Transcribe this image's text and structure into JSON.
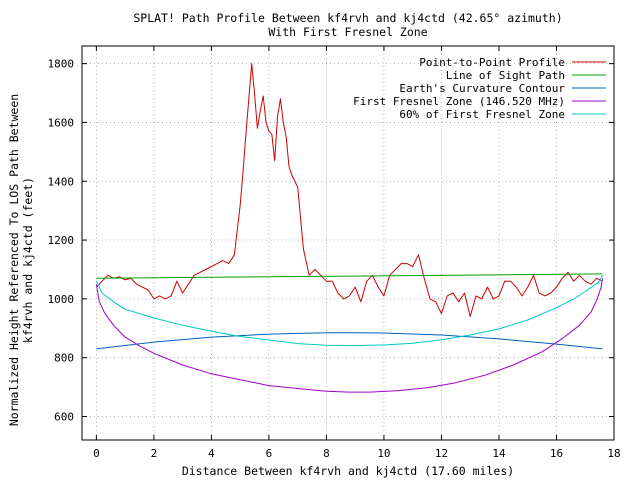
{
  "chart_data": {
    "type": "line",
    "title": "SPLAT! Path Profile Between kf4rvh and kj4ctd (42.65° azimuth)",
    "subtitle": "With First Fresnel Zone",
    "xlabel": "Distance Between kf4rvh and kj4ctd (17.60 miles)",
    "ylabel_line1": "Normalized Height Referenced To LOS Path Between",
    "ylabel_line2": "kf4rvh and kj4ctd (feet)",
    "xlim": [
      -0.5,
      18
    ],
    "ylim": [
      520,
      1860
    ],
    "x_ticks": [
      0,
      2,
      4,
      6,
      8,
      10,
      12,
      14,
      16,
      18
    ],
    "y_ticks": [
      600,
      800,
      1000,
      1200,
      1400,
      1600,
      1800
    ],
    "x_tick_labels": [
      "0",
      "2",
      "4",
      "6",
      "8",
      "10",
      "12",
      "14",
      "16",
      "18"
    ],
    "y_tick_labels": [
      "600",
      "800",
      "1000",
      "1200",
      "1400",
      "1600",
      "1800"
    ],
    "grid": true,
    "legend_position": "top-right",
    "series": [
      {
        "name": "Point-to-Point Profile",
        "color": "#cc0000",
        "x": [
          0,
          0.2,
          0.4,
          0.6,
          0.8,
          1.0,
          1.2,
          1.4,
          1.6,
          1.8,
          2.0,
          2.2,
          2.4,
          2.6,
          2.8,
          3.0,
          3.2,
          3.4,
          3.6,
          3.8,
          4.0,
          4.2,
          4.4,
          4.6,
          4.8,
          5.0,
          5.1,
          5.2,
          5.3,
          5.4,
          5.5,
          5.6,
          5.7,
          5.8,
          5.9,
          6.0,
          6.1,
          6.2,
          6.3,
          6.4,
          6.5,
          6.6,
          6.7,
          6.8,
          7.0,
          7.2,
          7.4,
          7.6,
          7.8,
          8.0,
          8.2,
          8.4,
          8.6,
          8.8,
          9.0,
          9.2,
          9.4,
          9.6,
          9.8,
          10.0,
          10.2,
          10.4,
          10.6,
          10.8,
          11.0,
          11.2,
          11.4,
          11.6,
          11.8,
          12.0,
          12.2,
          12.4,
          12.6,
          12.8,
          13.0,
          13.2,
          13.4,
          13.6,
          13.8,
          14.0,
          14.2,
          14.4,
          14.6,
          14.8,
          15.0,
          15.2,
          15.4,
          15.6,
          15.8,
          16.0,
          16.2,
          16.4,
          16.6,
          16.8,
          17.0,
          17.2,
          17.4,
          17.6
        ],
        "values": [
          1040,
          1060,
          1080,
          1070,
          1075,
          1065,
          1070,
          1050,
          1040,
          1030,
          1000,
          1010,
          1000,
          1010,
          1060,
          1020,
          1050,
          1080,
          1090,
          1100,
          1110,
          1120,
          1130,
          1120,
          1150,
          1320,
          1430,
          1560,
          1680,
          1800,
          1700,
          1580,
          1640,
          1690,
          1600,
          1570,
          1560,
          1470,
          1620,
          1680,
          1600,
          1550,
          1450,
          1420,
          1380,
          1170,
          1080,
          1100,
          1080,
          1060,
          1060,
          1020,
          1000,
          1010,
          1040,
          990,
          1060,
          1080,
          1040,
          1010,
          1080,
          1100,
          1120,
          1120,
          1110,
          1150,
          1070,
          1000,
          990,
          950,
          1010,
          1020,
          990,
          1020,
          940,
          1010,
          1000,
          1040,
          1000,
          1010,
          1060,
          1060,
          1040,
          1010,
          1040,
          1080,
          1020,
          1010,
          1020,
          1040,
          1070,
          1090,
          1060,
          1080,
          1060,
          1050,
          1070,
          1060
        ]
      },
      {
        "name": "Line of Sight Path",
        "color": "#00a000",
        "x": [
          0,
          17.6
        ],
        "values": [
          1070,
          1085
        ]
      },
      {
        "name": "Earth's Curvature Contour",
        "color": "#0060c0",
        "x": [
          0,
          2,
          4,
          6,
          8,
          9,
          10,
          12,
          14,
          16,
          17.6
        ],
        "values": [
          830,
          853,
          870,
          880,
          885,
          885,
          884,
          877,
          864,
          846,
          830
        ]
      },
      {
        "name": "First Fresnel Zone (146.520 MHz)",
        "color": "#a000c8",
        "x": [
          0,
          0.1,
          0.3,
          0.6,
          1.0,
          1.5,
          2.0,
          3.0,
          4.0,
          5.0,
          6.0,
          7.0,
          8.0,
          8.8,
          9.5,
          10.5,
          11.5,
          12.5,
          13.5,
          14.5,
          15.5,
          16.2,
          16.8,
          17.2,
          17.4,
          17.55,
          17.6
        ],
        "values": [
          1050,
          990,
          950,
          910,
          870,
          840,
          815,
          775,
          745,
          725,
          705,
          695,
          686,
          683,
          683,
          688,
          698,
          715,
          740,
          775,
          820,
          865,
          910,
          955,
          995,
          1040,
          1070
        ]
      },
      {
        "name": "60% of First Fresnel Zone",
        "color": "#00c8c8",
        "x": [
          0,
          0.2,
          0.6,
          1.0,
          2.0,
          3.0,
          4.0,
          5.0,
          6.0,
          7.0,
          8.0,
          9.0,
          10.0,
          11.0,
          12.0,
          13.0,
          14.0,
          15.0,
          16.0,
          16.6,
          17.0,
          17.3,
          17.5,
          17.6
        ],
        "values": [
          1060,
          1020,
          990,
          965,
          935,
          910,
          890,
          872,
          860,
          848,
          842,
          841,
          843,
          849,
          861,
          877,
          898,
          928,
          970,
          1000,
          1025,
          1045,
          1060,
          1080
        ]
      }
    ]
  }
}
